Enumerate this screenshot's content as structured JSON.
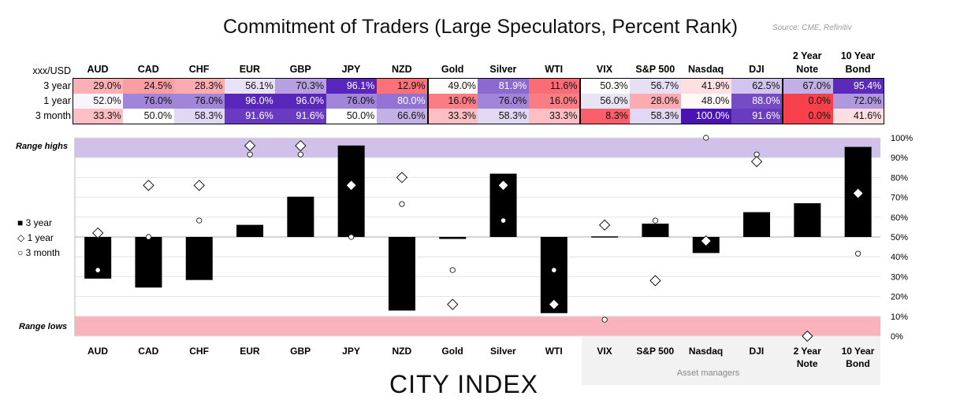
{
  "title": "Commitment of Traders (Large Speculators, Percent Rank)",
  "source": "Source: CME, Refinitiv",
  "logo": "CITY INDEX",
  "table": {
    "corner": "xxx/USD",
    "columns": [
      "AUD",
      "CAD",
      "CHF",
      "EUR",
      "GBP",
      "JPY",
      "NZD",
      "Gold",
      "Silver",
      "WTI",
      "VIX",
      "S&P 500",
      "Nasdaq",
      "DJI",
      "2 Year Note",
      "10 Year Bond"
    ],
    "rows": [
      {
        "label": "3 year",
        "values": [
          "29.0%",
          "24.5%",
          "28.3%",
          "56.1%",
          "70.3%",
          "96.1%",
          "12.9%",
          "49.0%",
          "81.9%",
          "11.6%",
          "50.3%",
          "56.7%",
          "41.9%",
          "62.5%",
          "67.0%",
          "95.4%"
        ]
      },
      {
        "label": "1 year",
        "values": [
          "52.0%",
          "76.0%",
          "76.0%",
          "96.0%",
          "96.0%",
          "76.0%",
          "80.0%",
          "16.0%",
          "76.0%",
          "16.0%",
          "56.0%",
          "28.0%",
          "48.0%",
          "88.0%",
          "0.0%",
          "72.0%"
        ]
      },
      {
        "label": "3 month",
        "values": [
          "33.3%",
          "50.0%",
          "58.3%",
          "91.6%",
          "91.6%",
          "50.0%",
          "66.6%",
          "33.3%",
          "58.3%",
          "33.3%",
          "8.3%",
          "58.3%",
          "100.0%",
          "91.6%",
          "0.0%",
          "41.6%"
        ]
      }
    ]
  },
  "colors": {
    "low": "#f8404c",
    "mid": "#ffffff",
    "high": "#4a14b4",
    "range_high_band": "#d0c1ea",
    "range_low_band": "#f8b3bb",
    "range_high_text": "#5b2fb0",
    "range_low_text": "#e8394a"
  },
  "chart_data": {
    "type": "bar",
    "categories": [
      "AUD",
      "CAD",
      "CHF",
      "EUR",
      "GBP",
      "JPY",
      "NZD",
      "Gold",
      "Silver",
      "WTI",
      "VIX",
      "S&P 500",
      "Nasdaq",
      "DJI",
      "2 Year Note",
      "10 Year Bond"
    ],
    "baseline": 50,
    "series": [
      {
        "name": "3 year",
        "type": "bar",
        "values": [
          29.0,
          24.5,
          28.3,
          56.1,
          70.3,
          96.1,
          12.9,
          49.0,
          81.9,
          11.6,
          50.3,
          56.7,
          41.9,
          62.5,
          67.0,
          95.4
        ]
      },
      {
        "name": "1 year",
        "type": "diamond",
        "values": [
          52.0,
          76.0,
          76.0,
          96.0,
          96.0,
          76.0,
          80.0,
          16.0,
          76.0,
          16.0,
          56.0,
          28.0,
          48.0,
          88.0,
          0.0,
          72.0
        ]
      },
      {
        "name": "3 month",
        "type": "circle",
        "values": [
          33.3,
          50.0,
          58.3,
          91.6,
          91.6,
          50.0,
          66.6,
          33.3,
          58.3,
          33.3,
          8.3,
          58.3,
          100.0,
          91.6,
          0.0,
          41.6
        ]
      }
    ],
    "yticks": [
      "0%",
      "10%",
      "20%",
      "30%",
      "40%",
      "50%",
      "60%",
      "70%",
      "80%",
      "90%",
      "100%"
    ],
    "ylim": [
      0,
      100
    ],
    "grid": true,
    "legend": "left",
    "bands": [
      {
        "label": "Range highs",
        "range": [
          90,
          100
        ]
      },
      {
        "label": "Range lows",
        "range": [
          0,
          10
        ]
      }
    ],
    "group_label": "Asset managers"
  }
}
